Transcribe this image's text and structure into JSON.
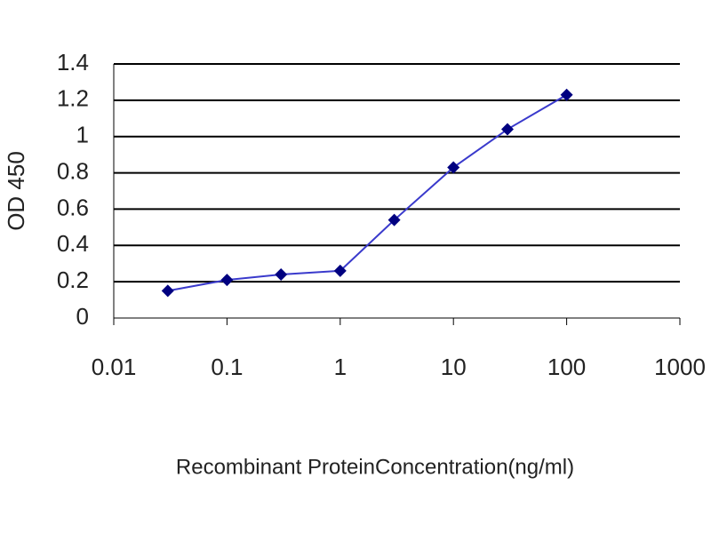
{
  "chart_data": {
    "type": "line",
    "y_label": "OD 450",
    "x_label": "Recombinant ProteinConcentration(ng/ml)",
    "x": [
      0.03,
      0.1,
      0.3,
      1,
      3,
      10,
      30,
      100
    ],
    "values": [
      0.15,
      0.21,
      0.24,
      0.26,
      0.54,
      0.83,
      1.04,
      1.23
    ],
    "color": "#3a3acc",
    "marker_color": "#000080",
    "xlim": [
      0.01,
      1000
    ],
    "xticks": [
      0.01,
      0.1,
      1,
      10,
      100,
      1000
    ],
    "log_x": true,
    "ylim": [
      0,
      1.4
    ],
    "yticks": [
      0,
      0.2,
      0.4,
      0.6,
      0.8,
      1,
      1.2,
      1.4
    ],
    "grid": true
  }
}
